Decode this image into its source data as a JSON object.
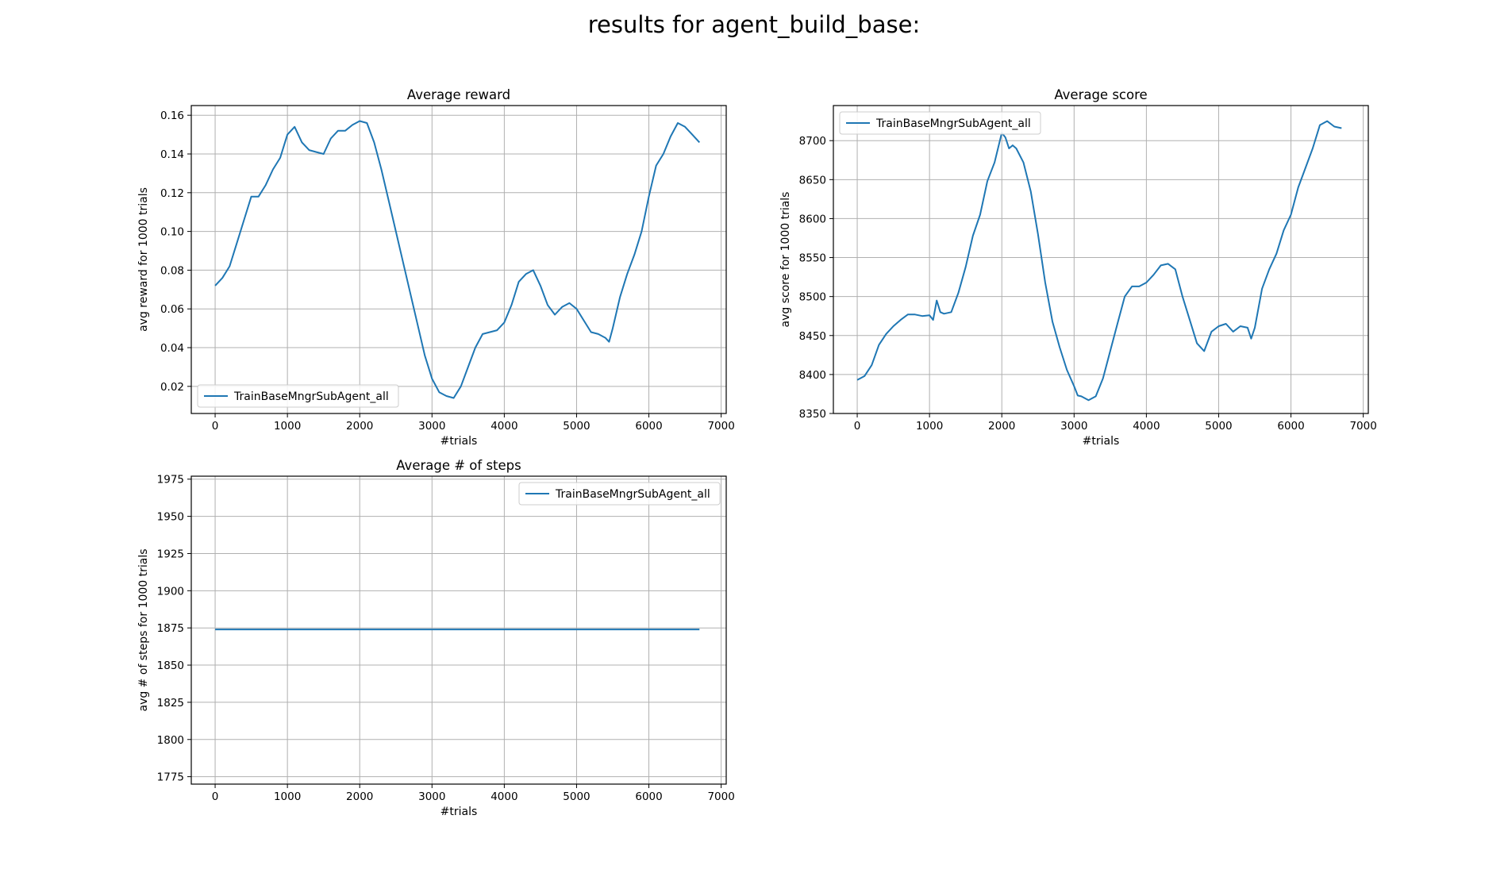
{
  "suptitle": "results for agent_build_base:",
  "chart_data": [
    {
      "type": "line",
      "title": "Average reward",
      "xlabel": "#trials",
      "ylabel": "avg reward for 1000 trials",
      "xlim": [
        -330,
        7070
      ],
      "ylim": [
        0.006,
        0.165
      ],
      "xticks": [
        0,
        1000,
        2000,
        3000,
        4000,
        5000,
        6000,
        7000
      ],
      "yticks": [
        0.02,
        0.04,
        0.06,
        0.08,
        0.1,
        0.12,
        0.14,
        0.16
      ],
      "ytick_labels": [
        "0.02",
        "0.04",
        "0.06",
        "0.08",
        "0.10",
        "0.12",
        "0.14",
        "0.16"
      ],
      "grid": true,
      "legend": "lower left",
      "color": "#1f77b4",
      "series": [
        {
          "name": "TrainBaseMngrSubAgent_all",
          "x": [
            0,
            100,
            200,
            300,
            400,
            500,
            600,
            700,
            800,
            900,
            1000,
            1100,
            1200,
            1300,
            1400,
            1500,
            1600,
            1700,
            1800,
            1900,
            2000,
            2100,
            2200,
            2300,
            2400,
            2500,
            2600,
            2700,
            2800,
            2900,
            3000,
            3100,
            3200,
            3300,
            3400,
            3500,
            3600,
            3700,
            3800,
            3900,
            4000,
            4100,
            4200,
            4300,
            4400,
            4500,
            4600,
            4700,
            4800,
            4900,
            5000,
            5100,
            5200,
            5300,
            5400,
            5450,
            5500,
            5600,
            5700,
            5800,
            5900,
            6000,
            6100,
            6200,
            6300,
            6400,
            6500,
            6600,
            6700
          ],
          "y": [
            0.072,
            0.076,
            0.082,
            0.094,
            0.106,
            0.118,
            0.118,
            0.124,
            0.132,
            0.138,
            0.15,
            0.154,
            0.146,
            0.142,
            0.141,
            0.14,
            0.148,
            0.152,
            0.152,
            0.155,
            0.157,
            0.156,
            0.146,
            0.132,
            0.116,
            0.1,
            0.084,
            0.068,
            0.052,
            0.036,
            0.024,
            0.017,
            0.015,
            0.014,
            0.02,
            0.03,
            0.04,
            0.047,
            0.048,
            0.049,
            0.053,
            0.062,
            0.074,
            0.078,
            0.08,
            0.072,
            0.062,
            0.057,
            0.061,
            0.063,
            0.06,
            0.054,
            0.048,
            0.047,
            0.045,
            0.043,
            0.05,
            0.066,
            0.078,
            0.088,
            0.1,
            0.118,
            0.134,
            0.14,
            0.149,
            0.156,
            0.154,
            0.15,
            0.146
          ]
        }
      ]
    },
    {
      "type": "line",
      "title": "Average score",
      "xlabel": "#trials",
      "ylabel": "avg score for 1000 trials",
      "xlim": [
        -330,
        7070
      ],
      "ylim": [
        8350,
        8745
      ],
      "xticks": [
        0,
        1000,
        2000,
        3000,
        4000,
        5000,
        6000,
        7000
      ],
      "yticks": [
        8350,
        8400,
        8450,
        8500,
        8550,
        8600,
        8650,
        8700
      ],
      "ytick_labels": [
        "8350",
        "8400",
        "8450",
        "8500",
        "8550",
        "8600",
        "8650",
        "8700"
      ],
      "grid": true,
      "legend": "upper left",
      "color": "#1f77b4",
      "series": [
        {
          "name": "TrainBaseMngrSubAgent_all",
          "x": [
            0,
            100,
            200,
            300,
            400,
            500,
            600,
            700,
            800,
            900,
            1000,
            1050,
            1100,
            1150,
            1200,
            1300,
            1400,
            1500,
            1600,
            1700,
            1800,
            1900,
            2000,
            2050,
            2100,
            2150,
            2200,
            2300,
            2400,
            2500,
            2600,
            2700,
            2800,
            2900,
            3000,
            3050,
            3100,
            3200,
            3300,
            3400,
            3500,
            3600,
            3700,
            3800,
            3900,
            4000,
            4100,
            4200,
            4300,
            4400,
            4500,
            4600,
            4700,
            4800,
            4900,
            5000,
            5100,
            5200,
            5300,
            5400,
            5450,
            5500,
            5600,
            5700,
            5800,
            5900,
            6000,
            6100,
            6200,
            6300,
            6400,
            6500,
            6600,
            6700
          ],
          "y": [
            8393,
            8398,
            8412,
            8438,
            8452,
            8462,
            8470,
            8477,
            8477,
            8475,
            8476,
            8470,
            8495,
            8480,
            8478,
            8480,
            8505,
            8538,
            8578,
            8605,
            8648,
            8672,
            8710,
            8704,
            8690,
            8694,
            8690,
            8672,
            8635,
            8580,
            8518,
            8468,
            8435,
            8406,
            8385,
            8373,
            8372,
            8367,
            8372,
            8395,
            8430,
            8465,
            8500,
            8513,
            8513,
            8518,
            8528,
            8540,
            8542,
            8535,
            8500,
            8470,
            8440,
            8430,
            8455,
            8462,
            8465,
            8455,
            8462,
            8460,
            8446,
            8460,
            8510,
            8535,
            8555,
            8585,
            8605,
            8640,
            8665,
            8690,
            8720,
            8725,
            8718,
            8716
          ]
        }
      ]
    },
    {
      "type": "line",
      "title": "Average # of steps",
      "xlabel": "#trials",
      "ylabel": "avg # of steps for 1000 trials",
      "xlim": [
        -330,
        7070
      ],
      "ylim": [
        1770,
        1977
      ],
      "xticks": [
        0,
        1000,
        2000,
        3000,
        4000,
        5000,
        6000,
        7000
      ],
      "yticks": [
        1775,
        1800,
        1825,
        1850,
        1875,
        1900,
        1925,
        1950,
        1975
      ],
      "ytick_labels": [
        "1775",
        "1800",
        "1825",
        "1850",
        "1875",
        "1900",
        "1925",
        "1950",
        "1975"
      ],
      "grid": true,
      "legend": "upper right",
      "color": "#1f77b4",
      "series": [
        {
          "name": "TrainBaseMngrSubAgent_all",
          "x": [
            0,
            6700
          ],
          "y": [
            1874,
            1874
          ]
        }
      ]
    }
  ]
}
